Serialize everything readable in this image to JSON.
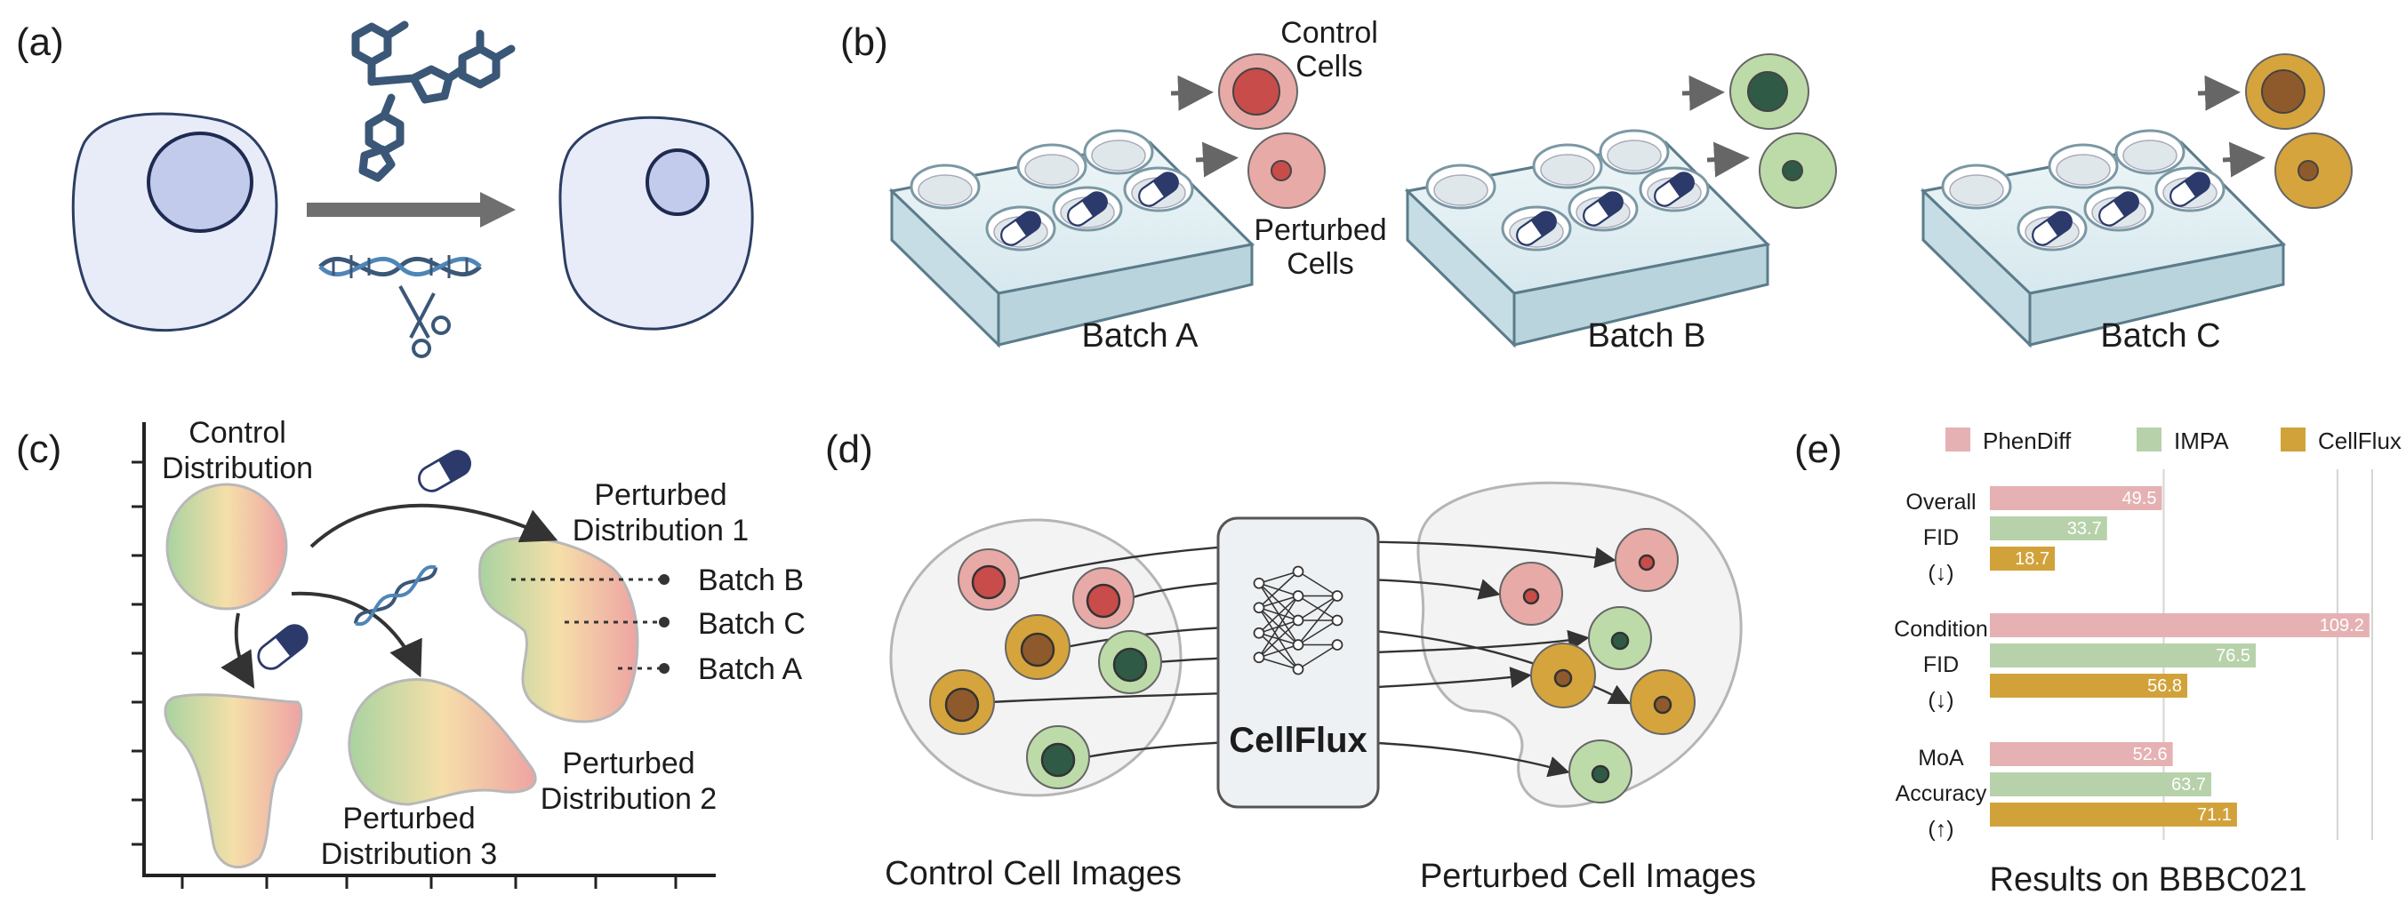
{
  "panels": {
    "a": {
      "letter": "(a)"
    },
    "b": {
      "letter": "(b)",
      "control_cells": "Control\nCells",
      "perturbed_cells": "Perturbed\nCells",
      "batches": [
        "Batch A",
        "Batch B",
        "Batch C"
      ]
    },
    "c": {
      "letter": "(c)",
      "control_distribution": "Control\nDistribution",
      "perturbed_1": "Perturbed\nDistribution 1",
      "perturbed_2": "Perturbed\nDistribution 2",
      "perturbed_3": "Perturbed\nDistribution 3",
      "batch_b": "Batch B",
      "batch_c": "Batch C",
      "batch_a": "Batch A"
    },
    "d": {
      "letter": "(d)",
      "model_name": "CellFlux",
      "control_caption": "Control Cell Images",
      "perturbed_caption": "Perturbed Cell Images"
    },
    "e": {
      "letter": "(e)"
    }
  },
  "colors": {
    "phendiff": "#e5b1b3",
    "impa": "#b7d2aa",
    "cellflux": "#d2a23a",
    "control_cell": "#e8aaa7",
    "control_nucleus": "#c84c4a",
    "batch_b_cell": "#bcdba9",
    "batch_b_nucleus": "#2f5a46",
    "batch_c_cell": "#d6a43c",
    "batch_c_nucleus": "#8e5a2c"
  },
  "chart_data": {
    "type": "bar",
    "orientation": "horizontal",
    "title": "Results on BBBC021",
    "series": [
      {
        "name": "PhenDiff",
        "color": "#e5b1b3",
        "values": [
          49.5,
          109.2,
          52.6
        ]
      },
      {
        "name": "IMPA",
        "color": "#b7d2aa",
        "values": [
          33.7,
          76.5,
          63.7
        ]
      },
      {
        "name": "CellFlux",
        "color": "#d2a23a",
        "values": [
          18.7,
          56.8,
          71.1
        ]
      }
    ],
    "groups": [
      {
        "label": [
          "Overall",
          "FID",
          "(↓)"
        ]
      },
      {
        "label": [
          "Condition",
          "FID",
          "(↓)"
        ]
      },
      {
        "label": [
          "MoA",
          "Accuracy",
          "(↑)"
        ]
      }
    ],
    "xlim": [
      0,
      110
    ],
    "grid": true,
    "legend": "top"
  }
}
